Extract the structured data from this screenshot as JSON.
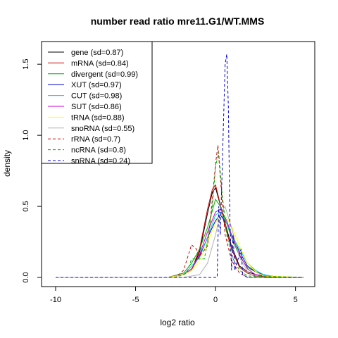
{
  "chart_data": {
    "type": "line",
    "title": "number read ratio mre11.G1/WT.MMS",
    "xlabel": "log2 ratio",
    "ylabel": "density",
    "xlim": [
      -10,
      5.5
    ],
    "ylim": [
      0,
      1.6
    ],
    "x_ticks": [
      {
        "value": -10,
        "label": "-10"
      },
      {
        "value": -5,
        "label": "-5"
      },
      {
        "value": 0,
        "label": "0"
      },
      {
        "value": 5,
        "label": "5"
      }
    ],
    "y_ticks": [
      {
        "value": 0,
        "label": "0.0"
      },
      {
        "value": 0.5,
        "label": "0.5"
      },
      {
        "value": 1,
        "label": "1.0"
      },
      {
        "value": 1.5,
        "label": "1.5"
      }
    ],
    "legend_position": "top-left",
    "grid": false,
    "series": [
      {
        "name": "gene (sd=0.87)",
        "color": "#000000",
        "dash": "solid",
        "points": [
          [
            -10,
            0
          ],
          [
            -3,
            0
          ],
          [
            -2,
            0.02
          ],
          [
            -1.5,
            0.05
          ],
          [
            -1,
            0.18
          ],
          [
            -0.5,
            0.45
          ],
          [
            -0.2,
            0.6
          ],
          [
            0,
            0.63
          ],
          [
            0.2,
            0.55
          ],
          [
            0.5,
            0.42
          ],
          [
            1,
            0.22
          ],
          [
            1.5,
            0.08
          ],
          [
            2,
            0.04
          ],
          [
            2.5,
            0.02
          ],
          [
            3,
            0.01
          ],
          [
            4,
            0
          ],
          [
            5.5,
            0
          ]
        ]
      },
      {
        "name": "mRNA (sd=0.84)",
        "color": "#cc0000",
        "dash": "solid",
        "points": [
          [
            -10,
            0
          ],
          [
            -3,
            0
          ],
          [
            -2,
            0.02
          ],
          [
            -1.5,
            0.05
          ],
          [
            -1,
            0.2
          ],
          [
            -0.5,
            0.48
          ],
          [
            -0.2,
            0.62
          ],
          [
            0,
            0.65
          ],
          [
            0.2,
            0.56
          ],
          [
            0.5,
            0.4
          ],
          [
            1,
            0.2
          ],
          [
            1.5,
            0.07
          ],
          [
            2,
            0.03
          ],
          [
            2.5,
            0.01
          ],
          [
            4,
            0
          ],
          [
            5.5,
            0
          ]
        ]
      },
      {
        "name": "divergent (sd=0.99)",
        "color": "#00aa00",
        "dash": "solid",
        "points": [
          [
            -10,
            0
          ],
          [
            -3,
            0
          ],
          [
            -2,
            0.03
          ],
          [
            -1.5,
            0.1
          ],
          [
            -1,
            0.2
          ],
          [
            -0.5,
            0.35
          ],
          [
            0,
            0.55
          ],
          [
            0.3,
            0.5
          ],
          [
            0.7,
            0.38
          ],
          [
            1,
            0.28
          ],
          [
            1.5,
            0.15
          ],
          [
            2,
            0.07
          ],
          [
            3,
            0.01
          ],
          [
            5.5,
            0
          ]
        ]
      },
      {
        "name": "XUT (sd=0.97)",
        "color": "#0000cc",
        "dash": "solid",
        "points": [
          [
            -10,
            0
          ],
          [
            -3,
            0
          ],
          [
            -2,
            0.02
          ],
          [
            -1.5,
            0.06
          ],
          [
            -1,
            0.15
          ],
          [
            -0.5,
            0.28
          ],
          [
            0,
            0.4
          ],
          [
            0.3,
            0.44
          ],
          [
            0.7,
            0.38
          ],
          [
            1,
            0.3
          ],
          [
            1.5,
            0.18
          ],
          [
            2,
            0.08
          ],
          [
            2.5,
            0.04
          ],
          [
            3,
            0.02
          ],
          [
            4,
            0
          ],
          [
            5.5,
            0
          ]
        ]
      },
      {
        "name": "CUT (sd=0.98)",
        "color": "#00cccc",
        "dash": "solid",
        "points": [
          [
            -10,
            0
          ],
          [
            -3,
            0
          ],
          [
            -2,
            0.02
          ],
          [
            -1.5,
            0.08
          ],
          [
            -1,
            0.14
          ],
          [
            -0.5,
            0.28
          ],
          [
            0,
            0.44
          ],
          [
            0.3,
            0.46
          ],
          [
            0.7,
            0.38
          ],
          [
            1,
            0.3
          ],
          [
            1.5,
            0.2
          ],
          [
            2,
            0.1
          ],
          [
            2.5,
            0.05
          ],
          [
            3,
            0.02
          ],
          [
            4,
            0
          ],
          [
            5.5,
            0
          ]
        ]
      },
      {
        "name": "SUT (sd=0.86)",
        "color": "#cc00cc",
        "dash": "solid",
        "points": [
          [
            -10,
            0
          ],
          [
            -3,
            0
          ],
          [
            -2,
            0.02
          ],
          [
            -1.5,
            0.06
          ],
          [
            -1,
            0.16
          ],
          [
            -0.5,
            0.32
          ],
          [
            0,
            0.46
          ],
          [
            0.3,
            0.48
          ],
          [
            0.7,
            0.4
          ],
          [
            1,
            0.3
          ],
          [
            1.5,
            0.16
          ],
          [
            2,
            0.06
          ],
          [
            2.5,
            0.02
          ],
          [
            4,
            0
          ],
          [
            5.5,
            0
          ]
        ]
      },
      {
        "name": "tRNA (sd=0.88)",
        "color": "#ffff00",
        "dash": "solid",
        "points": [
          [
            -10,
            0
          ],
          [
            -3,
            0
          ],
          [
            -2,
            0.02
          ],
          [
            -1.5,
            0.05
          ],
          [
            -1,
            0.12
          ],
          [
            -0.5,
            0.25
          ],
          [
            0,
            0.38
          ],
          [
            0.3,
            0.45
          ],
          [
            0.7,
            0.42
          ],
          [
            1,
            0.36
          ],
          [
            1.5,
            0.22
          ],
          [
            2,
            0.1
          ],
          [
            2.5,
            0.04
          ],
          [
            3,
            0.01
          ],
          [
            5.5,
            0
          ]
        ]
      },
      {
        "name": "snoRNA (sd=0.55)",
        "color": "#b0b0b0",
        "dash": "solid",
        "points": [
          [
            -10,
            0
          ],
          [
            -2,
            0
          ],
          [
            -1,
            0.02
          ],
          [
            -0.5,
            0.1
          ],
          [
            0,
            0.3
          ],
          [
            0.3,
            0.45
          ],
          [
            0.6,
            0.5
          ],
          [
            1,
            0.35
          ],
          [
            1.5,
            0.14
          ],
          [
            2,
            0.04
          ],
          [
            2.5,
            0
          ],
          [
            5.5,
            0
          ]
        ]
      },
      {
        "name": "rRNA (sd=0.7)",
        "color": "#cc0000",
        "dash": "dashed",
        "points": [
          [
            -10,
            0
          ],
          [
            -2.5,
            0
          ],
          [
            -2,
            0.05
          ],
          [
            -1.5,
            0.23
          ],
          [
            -1.2,
            0.2
          ],
          [
            -1,
            0.15
          ],
          [
            -0.5,
            0.22
          ],
          [
            -0.2,
            0.55
          ],
          [
            0,
            0.8
          ],
          [
            0.15,
            0.93
          ],
          [
            0.3,
            0.7
          ],
          [
            0.6,
            0.3
          ],
          [
            1,
            0.12
          ],
          [
            1.5,
            0.03
          ],
          [
            2,
            0
          ],
          [
            5.5,
            0
          ]
        ]
      },
      {
        "name": "ncRNA (sd=0.8)",
        "color": "#00aa00",
        "dash": "dashed",
        "points": [
          [
            -10,
            0
          ],
          [
            -2.5,
            0
          ],
          [
            -1.8,
            0.03
          ],
          [
            -1.5,
            0.13
          ],
          [
            -0.7,
            0.13
          ],
          [
            -0.5,
            0.25
          ],
          [
            -0.2,
            0.5
          ],
          [
            0,
            0.78
          ],
          [
            0.2,
            0.88
          ],
          [
            0.4,
            0.6
          ],
          [
            0.7,
            0.3
          ],
          [
            1,
            0.15
          ],
          [
            1.5,
            0.05
          ],
          [
            2,
            0.01
          ],
          [
            5.5,
            0
          ]
        ]
      },
      {
        "name": "snRNA (sd=0.24)",
        "color": "#0000cc",
        "dash": "dashed",
        "points": [
          [
            -10,
            0
          ],
          [
            0.1,
            0
          ],
          [
            0.2,
            0.5
          ],
          [
            0.3,
            0.3
          ],
          [
            0.45,
            0.9
          ],
          [
            0.6,
            1.5
          ],
          [
            0.7,
            1.57
          ],
          [
            0.8,
            1.2
          ],
          [
            0.9,
            0.4
          ],
          [
            1.0,
            0.05
          ],
          [
            1.1,
            0.3
          ],
          [
            1.2,
            0.05
          ],
          [
            1.6,
            0.2
          ],
          [
            1.7,
            0.02
          ],
          [
            2,
            0
          ],
          [
            5.5,
            0
          ]
        ]
      }
    ]
  }
}
